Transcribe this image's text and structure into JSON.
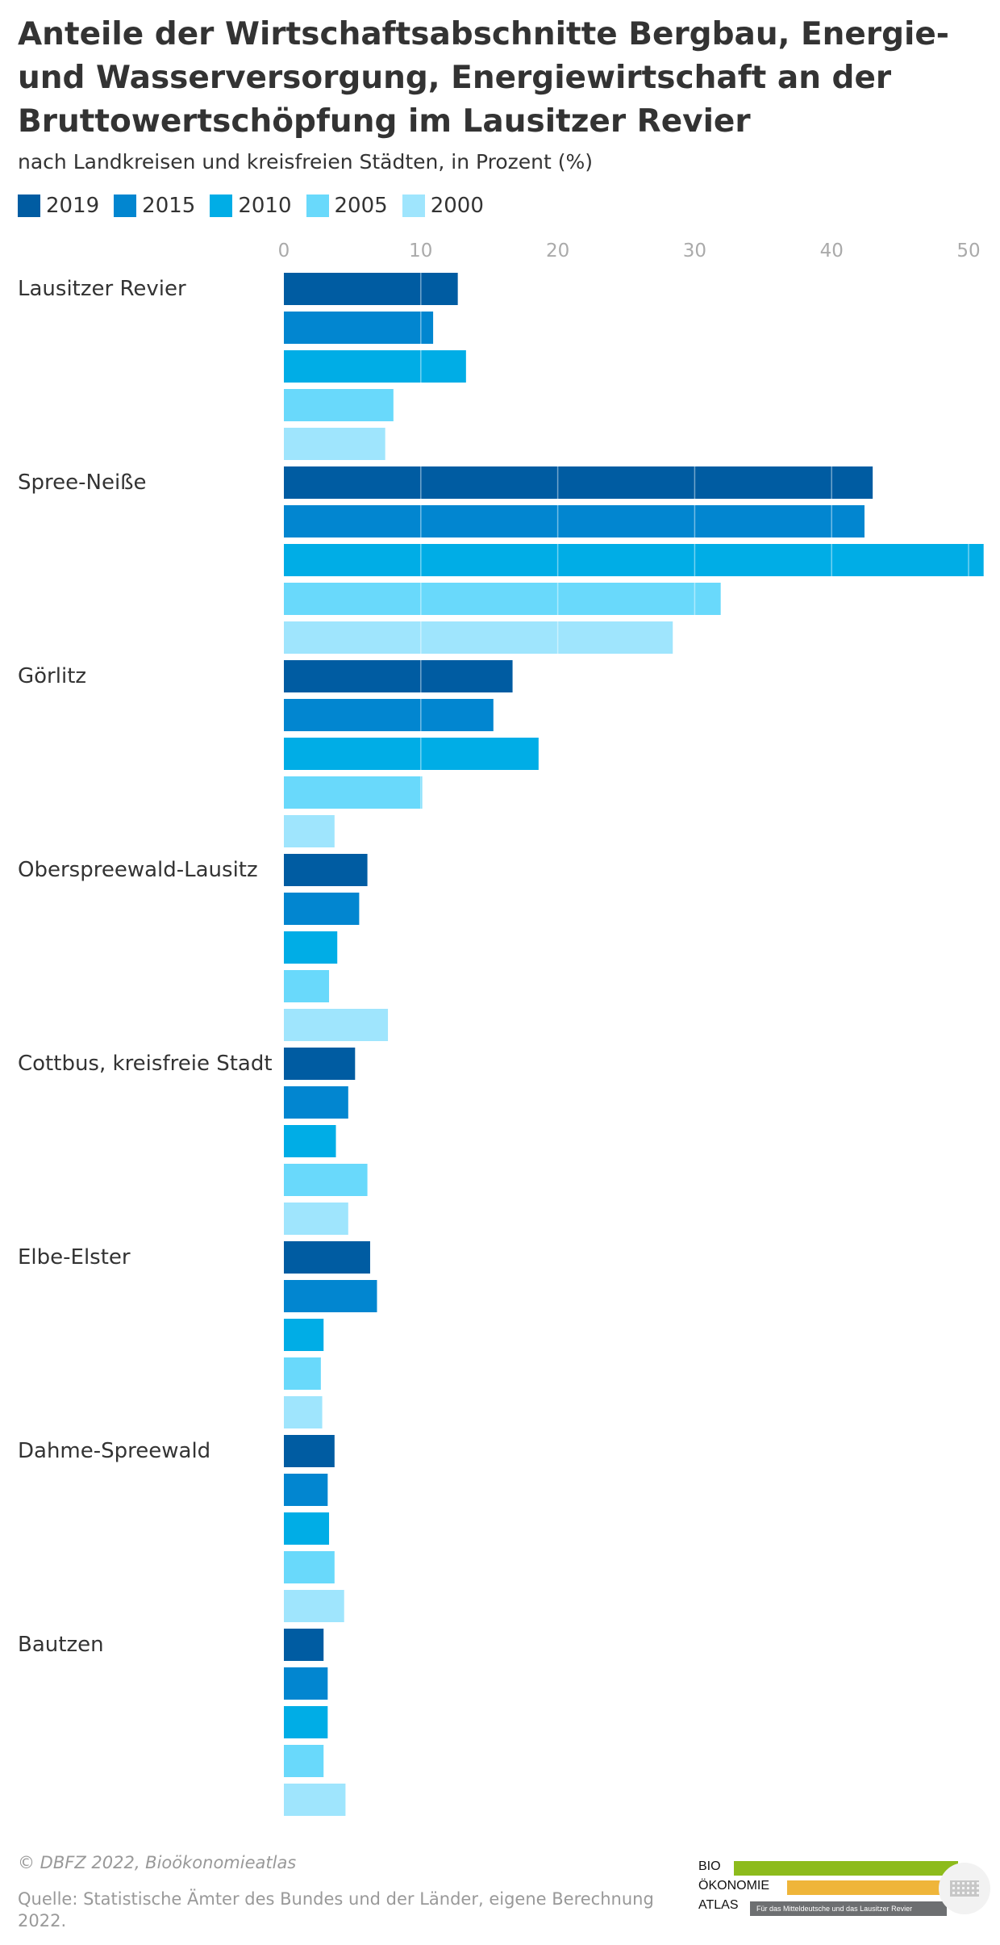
{
  "title": "Anteile der Wirtschaftsabschnitte Bergbau, Energie- und Wasserversorgung, Energiewirtschaft an der Bruttowertschöpfung im Lausitzer Revier",
  "subtitle": "nach Landkreisen und kreisfreien Städten, in Prozent (%)",
  "legend": [
    {
      "label": "2019",
      "color": "#005ca2"
    },
    {
      "label": "2015",
      "color": "#0286d0"
    },
    {
      "label": "2010",
      "color": "#00ade6"
    },
    {
      "label": "2005",
      "color": "#69d9fb"
    },
    {
      "label": "2000",
      "color": "#9fe5fd"
    }
  ],
  "chart_data": {
    "type": "bar",
    "orientation": "horizontal",
    "title": "Anteile der Wirtschaftsabschnitte Bergbau, Energie- und Wasserversorgung, Energiewirtschaft an der Bruttowertschöpfung im Lausitzer Revier",
    "subtitle": "nach Landkreisen und kreisfreien Städten, in Prozent (%)",
    "categories": [
      "Lausitzer Revier",
      "Spree-Neiße",
      "Görlitz",
      "Oberspreewald-Lausitz",
      "Cottbus, kreisfreie Stadt",
      "Elbe-Elster",
      "Dahme-Spreewald",
      "Bautzen"
    ],
    "series": [
      {
        "name": "2019",
        "color": "#005ca2",
        "values": [
          12.7,
          43.0,
          16.7,
          6.1,
          5.2,
          6.3,
          3.7,
          2.9
        ]
      },
      {
        "name": "2015",
        "color": "#0286d0",
        "values": [
          10.9,
          42.4,
          15.3,
          5.5,
          4.7,
          6.8,
          3.2,
          3.2
        ]
      },
      {
        "name": "2010",
        "color": "#00ade6",
        "values": [
          13.3,
          51.1,
          18.6,
          3.9,
          3.8,
          2.9,
          3.3,
          3.2
        ]
      },
      {
        "name": "2005",
        "color": "#69d9fb",
        "values": [
          8.0,
          31.9,
          10.1,
          3.3,
          6.1,
          2.7,
          3.7,
          2.9
        ]
      },
      {
        "name": "2000",
        "color": "#9fe5fd",
        "values": [
          7.4,
          28.4,
          3.7,
          7.6,
          4.7,
          2.8,
          4.4,
          4.5
        ]
      }
    ],
    "xticks": [
      "0",
      "10",
      "20",
      "30",
      "40",
      "50"
    ],
    "xlim": [
      0,
      51
    ],
    "grid": true,
    "legend_position": "top-left"
  },
  "footer": {
    "copyright": "© DBFZ 2022, Bioökonomieatlas",
    "source": "Quelle: Statistische Ämter des Bundes und der Länder, eigene Berechnung 2022."
  },
  "logo": {
    "line1": "BIO",
    "line2": "ÖKONOMIE",
    "line3": "ATLAS",
    "tagline": "Für das Mitteldeutsche und das Lausitzer Revier",
    "colors": [
      "#8dbb1c",
      "#efb53a",
      "#6d6f71"
    ]
  }
}
